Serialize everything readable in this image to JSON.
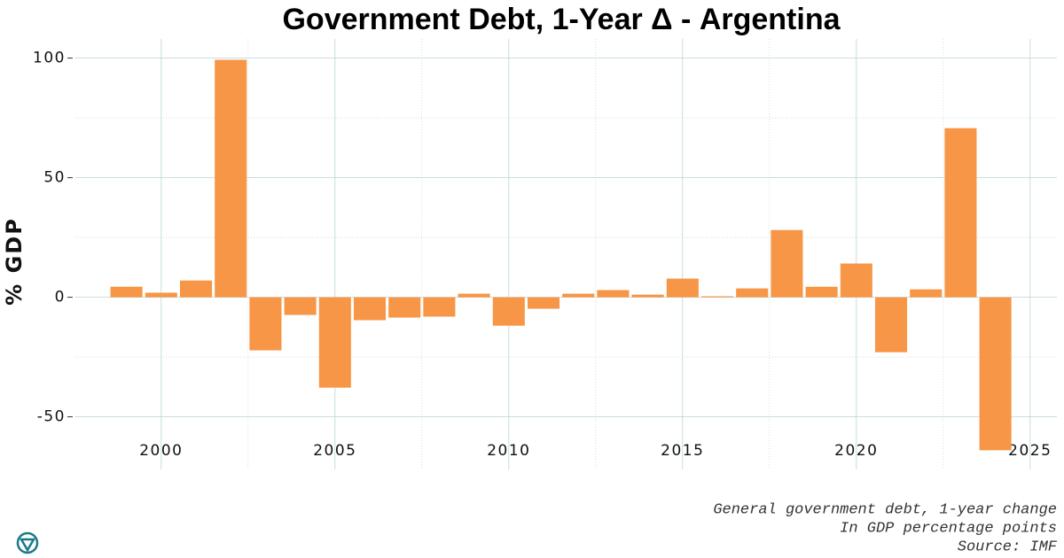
{
  "chart_data": {
    "type": "bar",
    "title": "Government Debt, 1-Year Δ - Argentina",
    "y_label": "% GDP",
    "caption": [
      "General government debt, 1-year change",
      "In GDP percentage points",
      "Source: IMF"
    ],
    "x": [
      1999,
      2000,
      2001,
      2002,
      2003,
      2004,
      2005,
      2006,
      2007,
      2008,
      2009,
      2010,
      2011,
      2012,
      2013,
      2014,
      2015,
      2016,
      2017,
      2018,
      2019,
      2020,
      2021,
      2022,
      2023,
      2024
    ],
    "values": [
      4.4,
      1.9,
      7,
      99.3,
      -22.2,
      -7.4,
      -37.8,
      -9.6,
      -8.5,
      -8.1,
      1.5,
      -11.9,
      -4.8,
      1.5,
      3,
      1.1,
      7.8,
      0.4,
      3.7,
      28.1,
      4.4,
      14.1,
      -23,
      3.3,
      70.7,
      -64
    ],
    "color": "#f79646",
    "xlim": [
      1997.53,
      2025.77
    ],
    "xticks": [
      2000,
      2005,
      2010,
      2015,
      2020,
      2025
    ],
    "ylim": [
      -72,
      108
    ],
    "yticks": [
      -50,
      0,
      50,
      100
    ],
    "grid": true
  }
}
